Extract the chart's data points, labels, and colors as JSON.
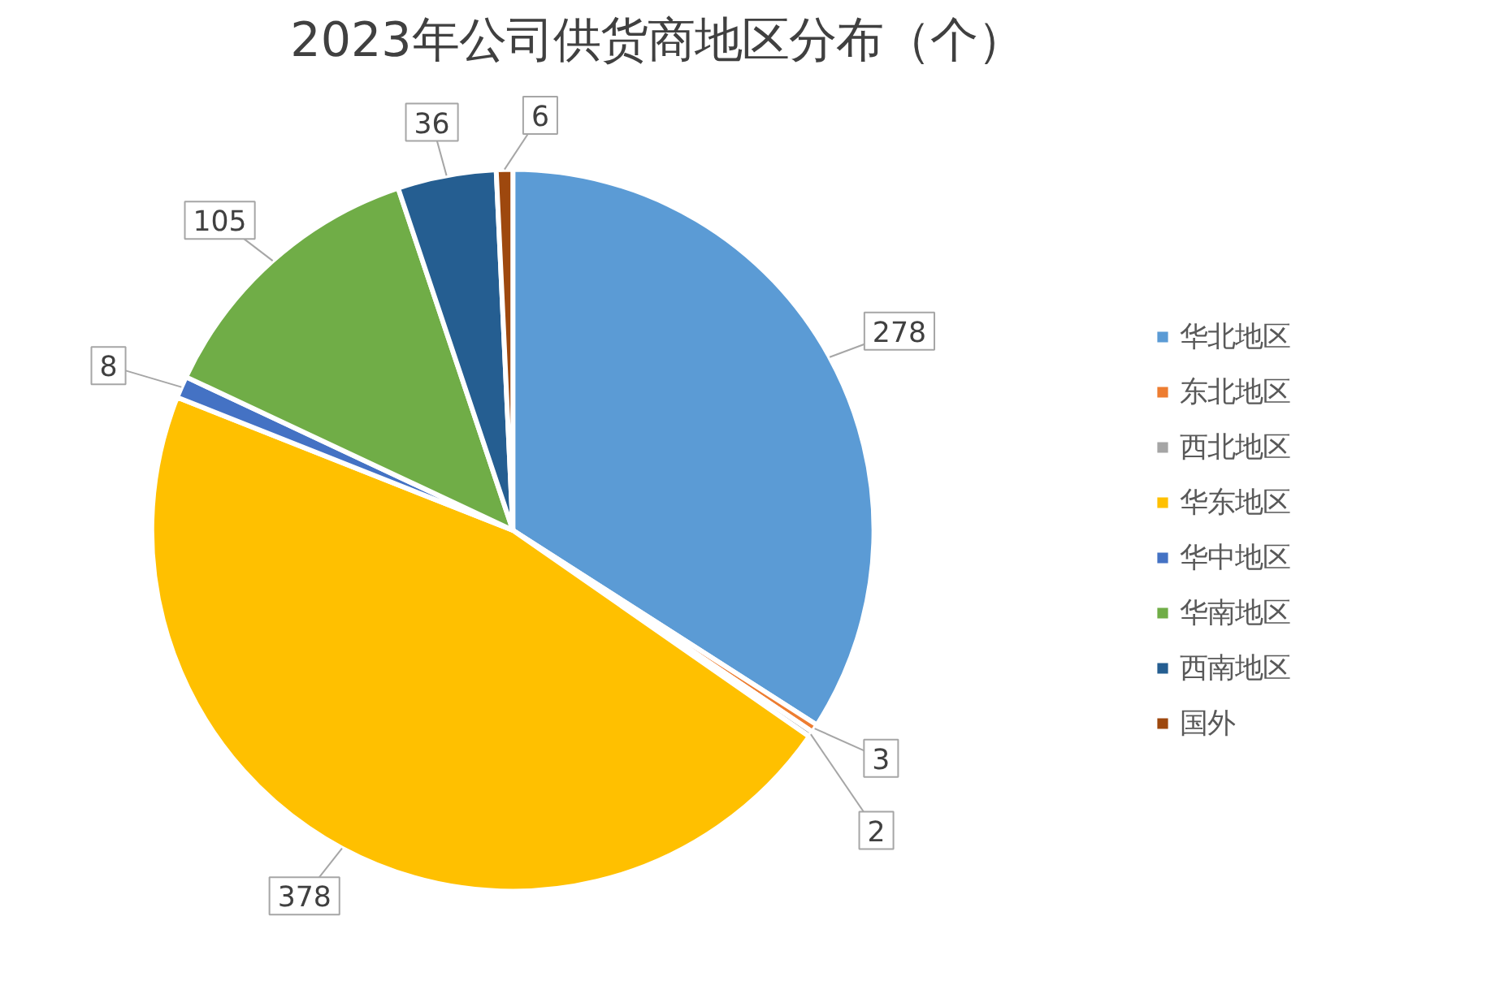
{
  "chart_data": {
    "type": "pie",
    "title": "2023年公司供货商地区分布（个）",
    "categories": [
      "华北地区",
      "东北地区",
      "西北地区",
      "华东地区",
      "华中地区",
      "华南地区",
      "西南地区",
      "国外"
    ],
    "values": [
      278,
      3,
      2,
      378,
      8,
      105,
      36,
      6
    ],
    "colors": [
      "#5b9bd5",
      "#ed7d31",
      "#a5a5a5",
      "#ffc000",
      "#4472c4",
      "#70ad47",
      "#255e91",
      "#9e480e"
    ],
    "data_labels": true,
    "legend": "right"
  }
}
